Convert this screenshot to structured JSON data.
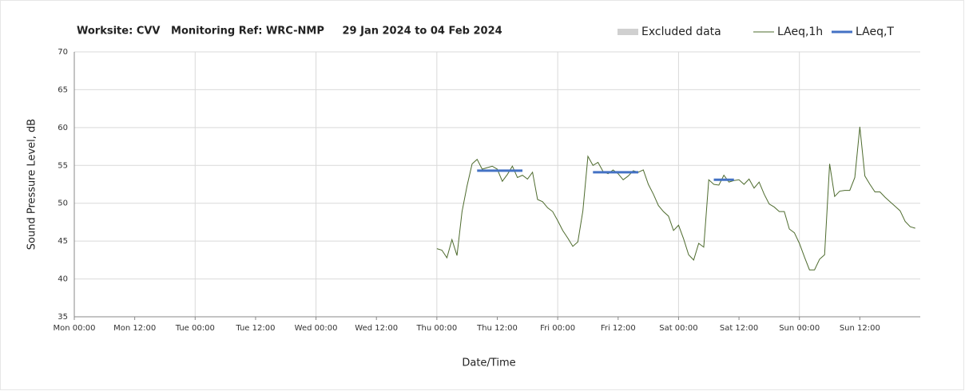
{
  "chart_data": {
    "type": "line",
    "title": "Worksite: CVV   Monitoring Ref: WRC-NMP     29 Jan 2024 to 04 Feb 2024",
    "x_label": "Date/Time",
    "y_label": "Sound Pressure Level, dB",
    "xlim": [
      0,
      168
    ],
    "xticks": [
      {
        "value": 0,
        "label": "Mon 00:00"
      },
      {
        "value": 12,
        "label": "Mon 12:00"
      },
      {
        "value": 24,
        "label": "Tue 00:00"
      },
      {
        "value": 36,
        "label": "Tue 12:00"
      },
      {
        "value": 48,
        "label": "Wed 00:00"
      },
      {
        "value": 60,
        "label": "Wed 12:00"
      },
      {
        "value": 72,
        "label": "Thu 00:00"
      },
      {
        "value": 84,
        "label": "Thu 12:00"
      },
      {
        "value": 96,
        "label": "Fri 00:00"
      },
      {
        "value": 108,
        "label": "Fri 12:00"
      },
      {
        "value": 120,
        "label": "Sat 00:00"
      },
      {
        "value": 132,
        "label": "Sat 12:00"
      },
      {
        "value": 144,
        "label": "Sun 00:00"
      },
      {
        "value": 156,
        "label": "Sun 12:00"
      }
    ],
    "ylim": [
      35,
      70
    ],
    "yticks": [
      35,
      40,
      45,
      50,
      55,
      60,
      65,
      70
    ],
    "grid": true,
    "legend": "top-right",
    "series": [
      {
        "name": "Excluded data",
        "color": "#d0d0d0",
        "style": "area",
        "x": [],
        "values": []
      },
      {
        "name": "LAeq,1h",
        "color": "#4e6b2e",
        "style": "thin",
        "x": [
          72,
          73,
          74,
          75,
          76,
          77,
          78,
          79,
          80,
          81,
          82,
          83,
          84,
          85,
          86,
          87,
          88,
          89,
          90,
          91,
          92,
          93,
          94,
          95,
          96,
          97,
          98,
          99,
          100,
          101,
          102,
          103,
          104,
          105,
          106,
          107,
          108,
          109,
          110,
          111,
          112,
          113,
          114,
          115,
          116,
          117,
          118,
          119,
          120,
          121,
          122,
          123,
          124,
          125,
          126,
          127,
          128,
          129,
          130,
          131,
          132,
          133,
          134,
          135,
          136,
          137,
          138,
          139,
          140,
          141,
          142,
          143,
          144,
          145,
          146,
          147,
          148,
          149,
          150,
          151,
          152,
          153,
          154,
          155,
          156,
          157,
          158,
          159,
          160,
          161,
          162,
          163,
          164,
          165,
          166,
          167
        ],
        "values": [
          44.0,
          43.8,
          42.8,
          45.2,
          43.1,
          48.9,
          52.3,
          55.2,
          55.8,
          54.5,
          54.7,
          54.9,
          54.5,
          52.9,
          53.8,
          54.9,
          53.4,
          53.7,
          53.2,
          54.1,
          50.5,
          50.2,
          49.4,
          48.9,
          47.7,
          46.4,
          45.4,
          44.3,
          44.9,
          49.0,
          56.2,
          55.0,
          55.4,
          54.2,
          53.9,
          54.4,
          53.9,
          53.1,
          53.6,
          54.3,
          54.1,
          54.4,
          52.5,
          51.2,
          49.7,
          48.9,
          48.3,
          46.4,
          47.1,
          45.3,
          43.2,
          42.5,
          44.7,
          44.2,
          53.1,
          52.5,
          52.4,
          53.7,
          52.8,
          53.0,
          53.1,
          52.5,
          53.2,
          52.0,
          52.8,
          51.2,
          49.9,
          49.5,
          48.9,
          48.9,
          46.6,
          46.1,
          44.7,
          42.9,
          41.2,
          41.2,
          42.6,
          43.2,
          55.2,
          50.9,
          51.6,
          51.7,
          51.7,
          53.4,
          60.1,
          53.6,
          52.5,
          51.5,
          51.5,
          50.8,
          50.2,
          49.6,
          49.0,
          47.6,
          46.9,
          46.7
        ]
      },
      {
        "name": "LAeq,T",
        "color": "#4472c4",
        "style": "thick",
        "x": [
          80,
          89,
          96,
          103,
          112,
          120,
          127,
          131
        ],
        "values": [
          54.3,
          54.3,
          null,
          54.1,
          54.1,
          null,
          53.1,
          53.1
        ]
      }
    ]
  }
}
